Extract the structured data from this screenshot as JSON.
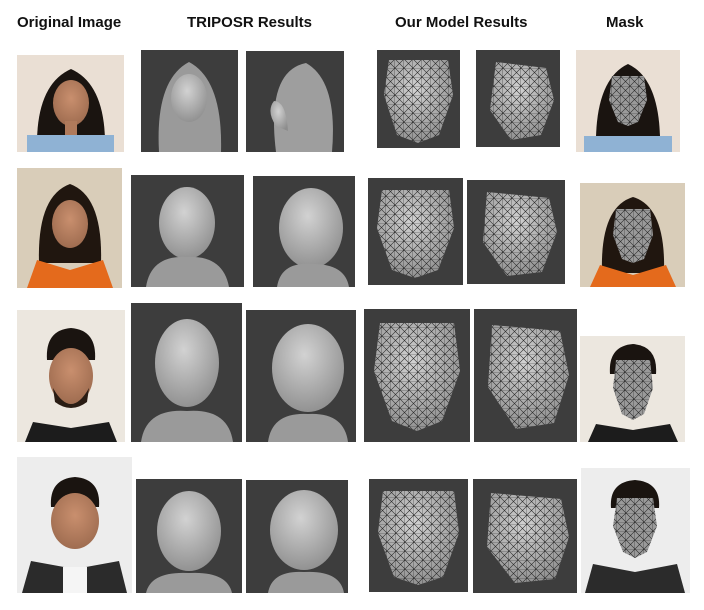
{
  "headers": {
    "original": "Original Image",
    "triposr": "TRIPOSR Results",
    "ours": "Our Model Results",
    "mask": "Mask"
  },
  "rows": [
    {
      "subject": "woman-1"
    },
    {
      "subject": "woman-2"
    },
    {
      "subject": "man-1"
    },
    {
      "subject": "man-2"
    }
  ]
}
